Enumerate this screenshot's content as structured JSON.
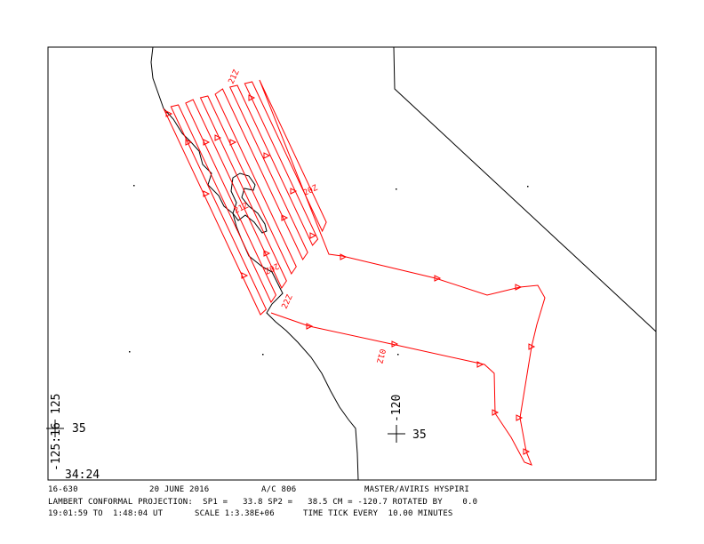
{
  "map": {
    "type": "flight-track-map",
    "projection": "Lambert conformal",
    "track_color": "#ff0000",
    "coast_color": "#000000",
    "time_labels": [
      "21Z",
      "20Z",
      "20Z",
      "21Z",
      "22Z",
      "01Z"
    ],
    "grid_labels": {
      "corner_lon_vertical": "-125:16",
      "lon_125": "125",
      "lat_35_left": "35",
      "corner_lat": "34:24",
      "lon_120": "-120",
      "lat_35_right": "35"
    }
  },
  "footer": {
    "line1": {
      "flight": "16-630",
      "date": "20 JUNE 2016",
      "aircraft": "A/C 806",
      "mission": "MASTER/AVIRIS HYSPIRI"
    },
    "line2": "LAMBERT CONFORMAL PROJECTION:  SP1 =   33.8 SP2 =   38.5 CM = -120.7 ROTATED BY    0.0",
    "line3": {
      "time_range": "19:01:59 TO  1:48:04 UT",
      "scale": "SCALE 1:3.38E+06",
      "tick": "TIME TICK EVERY  10.00 MINUTES"
    }
  }
}
